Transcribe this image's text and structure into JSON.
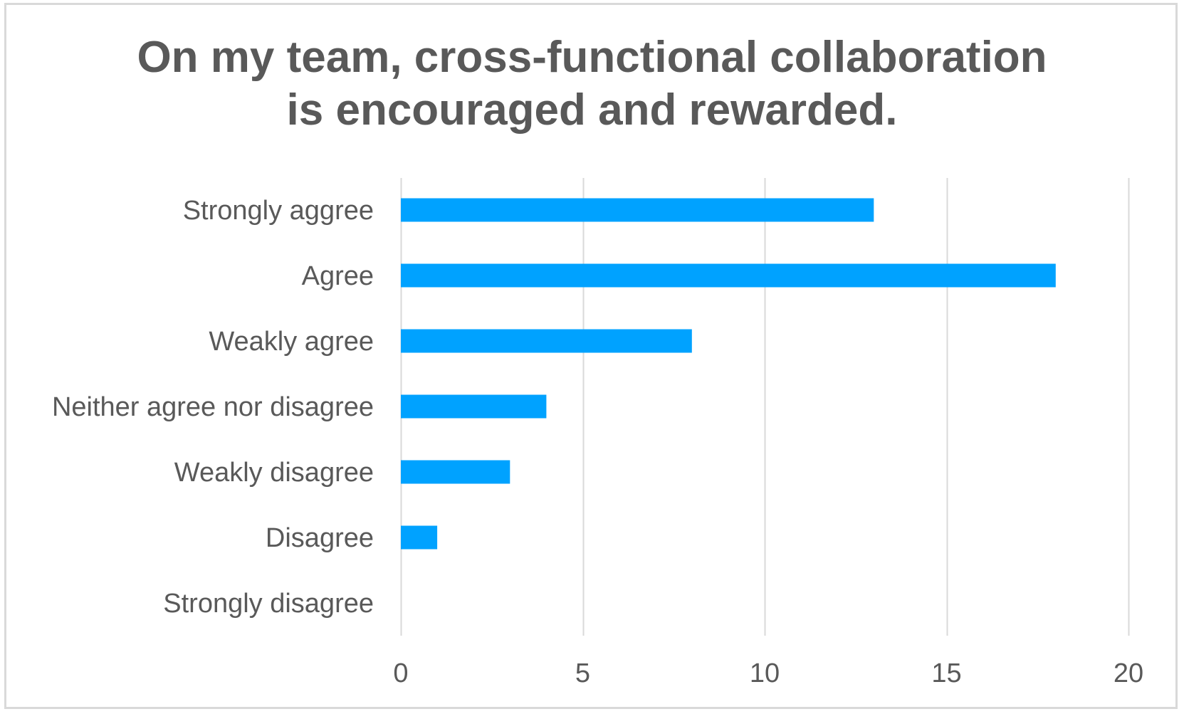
{
  "chart_data": {
    "type": "bar",
    "orientation": "horizontal",
    "title_lines": [
      "On my team, cross-functional collaboration",
      "is encouraged and rewarded."
    ],
    "categories": [
      "Strongly aggree",
      "Agree",
      "Weakly agree",
      "Neither agree nor disagree",
      "Weakly disagree",
      "Disagree",
      "Strongly disagree"
    ],
    "values": [
      13,
      18,
      8,
      4,
      3,
      1,
      0
    ],
    "xlim": [
      0,
      20
    ],
    "xticks": [
      0,
      5,
      10,
      15,
      20
    ],
    "xlabel": "",
    "ylabel": "",
    "grid": "vertical",
    "legend": "none",
    "bar_color": "#00a2ff",
    "grid_color": "#d9d9d9",
    "text_color": "#595959"
  }
}
